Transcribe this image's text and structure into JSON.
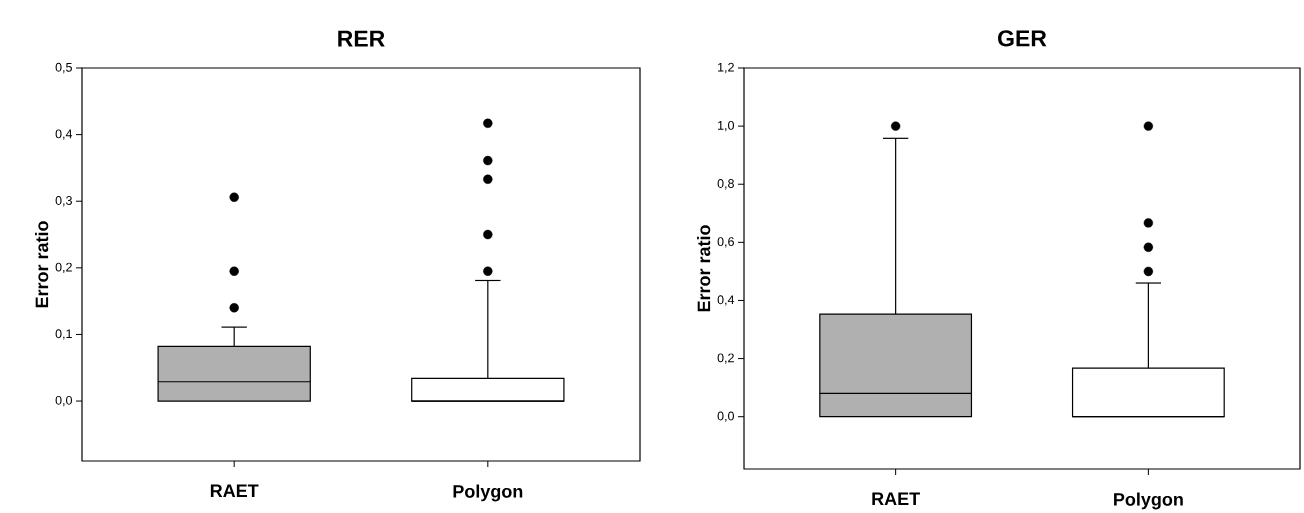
{
  "chart_data": [
    {
      "type": "box",
      "title": "RER",
      "ylabel": "Error ratio",
      "categories": [
        "RAET",
        "Polygon"
      ],
      "colors": [
        "#b0b0b0",
        "#ffffff"
      ],
      "boxes": [
        {
          "low": 0,
          "q1": 0,
          "median": 0.029,
          "q3": 0.082,
          "high": 0.111,
          "outliers": [
            0.14,
            0.195,
            0.306
          ]
        },
        {
          "low": 0,
          "q1": 0,
          "median": 0,
          "q3": 0.034,
          "high": 0.181,
          "outliers": [
            0.195,
            0.25,
            0.333,
            0.361,
            0.417
          ]
        }
      ],
      "ylim": [
        -0.09,
        0.5
      ],
      "yticks": [
        {
          "value": 0,
          "label": "0,0"
        },
        {
          "value": 0.1,
          "label": "0,1"
        },
        {
          "value": 0.2,
          "label": "0,2"
        },
        {
          "value": 0.3,
          "label": "0,3"
        },
        {
          "value": 0.4,
          "label": "0,4"
        },
        {
          "value": 0.5,
          "label": "0,5"
        }
      ]
    },
    {
      "type": "box",
      "title": "GER",
      "ylabel": "Error ratio",
      "categories": [
        "RAET",
        "Polygon"
      ],
      "colors": [
        "#b0b0b0",
        "#ffffff"
      ],
      "boxes": [
        {
          "low": 0,
          "q1": 0,
          "median": 0.08,
          "q3": 0.353,
          "high": 0.958,
          "outliers": [
            1.0
          ]
        },
        {
          "low": 0,
          "q1": 0,
          "median": 0,
          "q3": 0.167,
          "high": 0.46,
          "outliers": [
            0.5,
            0.583,
            0.667,
            1.0
          ]
        }
      ],
      "ylim": [
        -0.18,
        1.2
      ],
      "yticks": [
        {
          "value": 0,
          "label": "0,0"
        },
        {
          "value": 0.2,
          "label": "0,2"
        },
        {
          "value": 0.4,
          "label": "0,4"
        },
        {
          "value": 0.6,
          "label": "0,6"
        },
        {
          "value": 0.8,
          "label": "0,8"
        },
        {
          "value": 1.0,
          "label": "1,0"
        },
        {
          "value": 1.2,
          "label": "1,2"
        }
      ]
    }
  ]
}
